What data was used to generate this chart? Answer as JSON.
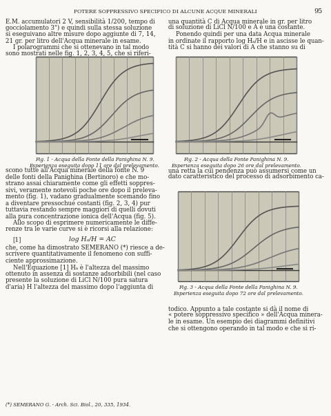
{
  "page_title": "POTERE SOPPRESSIVO SPECIFICO DI ALCUNE ACQUE MINERALI",
  "page_number": "95",
  "bg_color": "#f5f2ed",
  "fig_bg": "#d8d0c0",
  "left_text": [
    "E.M. accumulatori 2 V, sensibilità 1/200, tempo di",
    "gocciolamento 3\") e quindi sulla stessa soluzione",
    "si eseguivano altre misure dopo aggiunte di 7, 14,",
    "21 gr. per litro dell'Acqua minerale in esame.",
    "    I polarogrammi che si ottenevano in tal modo",
    "sono mostrati nelle fig. 1, 2, 3, 4, 5, che si riferi-"
  ],
  "right_text": [
    "una quantità C di Acqua minerale in gr. per litro",
    "di soluzione di LiCl N/100 e A è una costante.",
    "    Ponendo quindi per una data Acqua minerale",
    "in ordinate il rapporto log Hₐ/H e in ascisse le quan-",
    "tità C si hanno dei valori di A che stanno su di"
  ],
  "fig1_caption": [
    "Fig. 1 - Acqua della Fonte della Panighina N. 9.",
    "Esperienza eseguita dopo 11 ore dal prelevamento."
  ],
  "fig2_caption": [
    "Fig. 2 - Acqua della Fonte Panighina N. 9.",
    "Esperienza eseguita dopo 26 ore dal prelevamento."
  ],
  "fig3_caption": [
    "Fig. 3 - Acqua della Fonte della Panighina N. 9.",
    "Esperienza eseguita dopo 72 ore dal prelevamento."
  ],
  "bottom_left_text": [
    "scono tutte all'Acqua minerale della fonte N. 9",
    "delle fonti della Panighina (Bertinoro) e che mo-",
    "strano assai chiaramente come gli effetti soppres-",
    "sivi, veramente notevoli poche ore dopo il preleva-",
    "mento (fig. 1), vadano gradualmente scemando fino",
    "a diventare pressochué costanti (fig. 2, 3, 4) pur",
    "tuttavia restando sempre maggiori di quelli dovuti",
    "alla pura concentrazione ionica dell'Acqua (fig. 5).",
    "    Allo scopo di esprimere numericamente le diffe-",
    "renze tra le varie curve si è ricorsi alla relazione:"
  ],
  "formula_label": "[1]",
  "formula": "log Hₐ/H = AC",
  "bottom_right_text": [
    "una retta la cui pendenza può assumersi come un",
    "dato caratteristico del processo di adsorbimento ca-"
  ],
  "below_fig3_text": [
    "todico. Appunto a tale costante si dà il nome di",
    "« potere soppressivo specifico » dell'Acqua minera-",
    "le in esame. Un esempio dei diagrammi definitivi",
    "che si ottengono operando in tal modo e che si ri-"
  ],
  "after_formula_text": [
    "che, come ha dimostrato SEMERANO (*) riesce a de-",
    "scrivere quantitativamente il fenomeno con suffi-",
    "ciente approssimazione.",
    "    Nell'Equazione [1] Hₐ è l'altezza del massimo",
    "ottenuto in assenza di sostanze adsorbibili (nel caso",
    "presente la soluzione di LiCl N/100 pura satura",
    "d'aria) H l'altezza del massimo dopo l'aggiunta di"
  ],
  "footnote": "(*) SEMERANO G. - Arch. Sci. Biol., 20, 335, 1934."
}
